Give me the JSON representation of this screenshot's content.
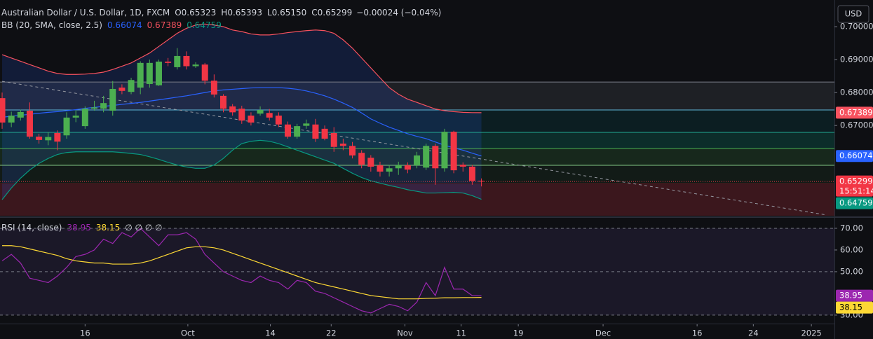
{
  "chart_data": [
    {
      "type": "candlestick",
      "title": "Australian Dollar / U.S. Dollar, 1D, FXCM",
      "ohlc_letters": [
        "O",
        "H",
        "L",
        "C"
      ],
      "change": "−0.00024 (−0.04%)",
      "currency": "USD",
      "countdown": "15:51:14",
      "indicator": "BB (20, SMA, close, 2.5)",
      "up_color": "#4caf50",
      "down_color": "#f23645",
      "candles": {
        "open": [
          0.6783,
          0.6709,
          0.6724,
          0.6745,
          0.6666,
          0.6655,
          0.6677,
          0.667,
          0.6724,
          0.6698,
          0.6751,
          0.6751,
          0.6745,
          0.6815,
          0.6802,
          0.6815,
          0.6826,
          0.6822,
          0.6894,
          0.6877,
          0.6911,
          0.688,
          0.6885,
          0.6836,
          0.679,
          0.6758,
          0.6751,
          0.673,
          0.6736,
          0.6738,
          0.673,
          0.6703,
          0.6666,
          0.6699,
          0.6703,
          0.669,
          0.6677,
          0.6645,
          0.6638,
          0.6617,
          0.6602,
          0.6579,
          0.656,
          0.657,
          0.6579,
          0.6579,
          0.6572,
          0.6638,
          0.657,
          0.6681,
          0.6581,
          0.6575,
          0.65323
        ],
        "high": [
          0.68,
          0.6742,
          0.6748,
          0.677,
          0.6675,
          0.668,
          0.6685,
          0.674,
          0.6745,
          0.6758,
          0.6775,
          0.679,
          0.6835,
          0.6825,
          0.6845,
          0.6895,
          0.69,
          0.69,
          0.6905,
          0.6935,
          0.6925,
          0.6892,
          0.689,
          0.6855,
          0.6795,
          0.6765,
          0.676,
          0.674,
          0.6758,
          0.675,
          0.674,
          0.6712,
          0.6705,
          0.6718,
          0.672,
          0.67,
          0.6695,
          0.666,
          0.665,
          0.6625,
          0.661,
          0.659,
          0.658,
          0.659,
          0.6588,
          0.662,
          0.6645,
          0.6645,
          0.669,
          0.6684,
          0.6588,
          0.658,
          0.65393
        ],
        "low": [
          0.669,
          0.6695,
          0.6715,
          0.666,
          0.6645,
          0.664,
          0.6625,
          0.666,
          0.671,
          0.669,
          0.6745,
          0.674,
          0.673,
          0.6795,
          0.6795,
          0.6795,
          0.6815,
          0.682,
          0.688,
          0.687,
          0.687,
          0.6875,
          0.6825,
          0.6785,
          0.674,
          0.673,
          0.6705,
          0.67,
          0.673,
          0.6715,
          0.6695,
          0.666,
          0.666,
          0.669,
          0.665,
          0.6655,
          0.662,
          0.6625,
          0.66,
          0.657,
          0.656,
          0.6545,
          0.6545,
          0.655,
          0.6555,
          0.657,
          0.6565,
          0.652,
          0.656,
          0.6555,
          0.656,
          0.652,
          0.6515
        ],
        "close": [
          0.6709,
          0.673,
          0.6741,
          0.6666,
          0.6656,
          0.6665,
          0.6651,
          0.6724,
          0.673,
          0.6751,
          0.6755,
          0.6768,
          0.6811,
          0.6805,
          0.6838,
          0.689,
          0.689,
          0.6894,
          0.689,
          0.6911,
          0.688,
          0.6885,
          0.6836,
          0.6794,
          0.6751,
          0.674,
          0.6715,
          0.6709,
          0.6747,
          0.6724,
          0.6703,
          0.6666,
          0.6698,
          0.6706,
          0.666,
          0.666,
          0.6635,
          0.6638,
          0.6609,
          0.6581,
          0.6575,
          0.656,
          0.657,
          0.6579,
          0.6566,
          0.6609,
          0.6638,
          0.657,
          0.6681,
          0.6564,
          0.6575,
          0.6532,
          0.65299
        ],
        "last_value_labels": [
          "0.65323",
          "0.65393",
          "0.65150",
          "0.65299"
        ]
      },
      "series": [
        {
          "color": "#f7525f",
          "values": [
            0.6915,
            0.6905,
            0.6895,
            0.6885,
            0.6875,
            0.6865,
            0.6858,
            0.6855,
            0.6855,
            0.6856,
            0.6858,
            0.6862,
            0.687,
            0.688,
            0.689,
            0.6905,
            0.692,
            0.694,
            0.696,
            0.698,
            0.6995,
            0.7005,
            0.7008,
            0.7005,
            0.7,
            0.699,
            0.6985,
            0.6978,
            0.6975,
            0.6975,
            0.6978,
            0.6982,
            0.6985,
            0.6988,
            0.699,
            0.6988,
            0.698,
            0.696,
            0.6935,
            0.6905,
            0.6875,
            0.6845,
            0.6815,
            0.6795,
            0.678,
            0.677,
            0.676,
            0.675,
            0.6745,
            0.6742,
            0.674,
            0.6739,
            0.67389
          ]
        },
        {
          "color": "#2962ff",
          "values": [
            0.6725,
            0.6728,
            0.6731,
            0.6734,
            0.6737,
            0.674,
            0.6742,
            0.6745,
            0.6748,
            0.6752,
            0.6755,
            0.6758,
            0.6761,
            0.6764,
            0.6767,
            0.677,
            0.6774,
            0.6778,
            0.6782,
            0.6786,
            0.679,
            0.6795,
            0.68,
            0.6805,
            0.6808,
            0.681,
            0.6812,
            0.6814,
            0.6815,
            0.6815,
            0.6815,
            0.6813,
            0.681,
            0.6805,
            0.6798,
            0.679,
            0.678,
            0.6768,
            0.6755,
            0.6738,
            0.672,
            0.6707,
            0.6695,
            0.6685,
            0.6675,
            0.6667,
            0.666,
            0.665,
            0.664,
            0.6632,
            0.6625,
            0.6616,
            0.66074
          ]
        },
        {
          "color": "#089981",
          "values": [
            0.6475,
            0.651,
            0.654,
            0.6565,
            0.6585,
            0.66,
            0.6612,
            0.6618,
            0.662,
            0.662,
            0.662,
            0.662,
            0.662,
            0.6618,
            0.6615,
            0.6612,
            0.6605,
            0.6597,
            0.6588,
            0.658,
            0.6574,
            0.657,
            0.657,
            0.658,
            0.66,
            0.6625,
            0.6645,
            0.6652,
            0.6655,
            0.6652,
            0.6645,
            0.6635,
            0.6625,
            0.6615,
            0.6605,
            0.6595,
            0.6585,
            0.657,
            0.6555,
            0.6542,
            0.6532,
            0.6525,
            0.6518,
            0.6512,
            0.6505,
            0.65,
            0.6495,
            0.6495,
            0.6496,
            0.6497,
            0.6495,
            0.6487,
            0.64759
          ]
        }
      ],
      "band_color": "rgba(41,98,255,0.16)",
      "levels": [
        {
          "value": 0.6832,
          "color": "#787b86",
          "fill": "rgba(120,123,134,0.16)"
        },
        {
          "value": 0.6747,
          "color": "#5fb6d6",
          "fill": "rgba(0,140,150,0.12)"
        },
        {
          "value": 0.6679,
          "color": "#22ab94",
          "fill": "rgba(8,153,129,0.22)"
        },
        {
          "value": 0.663,
          "color": "#4caf50",
          "fill": "rgba(76,175,80,0.16)"
        },
        {
          "value": 0.6579,
          "color": "#81c784",
          "fill": "rgba(76,175,80,0.08)"
        },
        {
          "value": 0.6524,
          "color": "#4a1a1e",
          "fill": "rgba(242,54,69,0.2)"
        }
      ],
      "trend_line": {
        "x": [
          0,
          89.5
        ],
        "y": [
          0.6834,
          0.6428
        ]
      },
      "xlim": [
        -0.23,
        90.3
      ],
      "xticks": [
        {
          "value": 9,
          "label": "16"
        },
        {
          "value": 20.15,
          "label": "Oct"
        },
        {
          "value": 29.1,
          "label": "14"
        },
        {
          "value": 35.7,
          "label": "22"
        },
        {
          "value": 43.7,
          "label": "Nov"
        },
        {
          "value": 49.8,
          "label": "11"
        },
        {
          "value": 56,
          "label": "19"
        },
        {
          "value": 65.2,
          "label": "Dec"
        },
        {
          "value": 75.4,
          "label": "16"
        },
        {
          "value": 81.5,
          "label": "24"
        },
        {
          "value": 87.8,
          "label": "2025"
        }
      ],
      "ylim": [
        0.6426,
        0.7081
      ],
      "yticks": [
        {
          "value": 0.7,
          "label": "0.70000"
        },
        {
          "value": 0.69,
          "label": "0.69000"
        },
        {
          "value": 0.68,
          "label": "0.68000"
        },
        {
          "value": 0.67,
          "label": "0.67000"
        }
      ]
    },
    {
      "type": "line",
      "indicator": "RSI (14, close)",
      "placeholders": "∅ ∅ ∅ ∅",
      "series": [
        {
          "color": "#9c27b0",
          "values": [
            55,
            58,
            54,
            47,
            46,
            45,
            48,
            52,
            57,
            58,
            60,
            65,
            63,
            68,
            66,
            70,
            66,
            62,
            67,
            67,
            68,
            65,
            58,
            54,
            50,
            48,
            46,
            45,
            48,
            46,
            45,
            42,
            46,
            45,
            41,
            40,
            38,
            36,
            34,
            32,
            31,
            33,
            35,
            34,
            32,
            36,
            45,
            39,
            52,
            42,
            42,
            39,
            38.95
          ]
        },
        {
          "color": "#fdd835",
          "values": [
            62,
            62,
            61.5,
            60.5,
            59.5,
            58.5,
            57.5,
            56,
            55,
            54.5,
            54,
            54,
            53.5,
            53.5,
            53.5,
            54,
            55,
            56.5,
            58,
            59.5,
            61,
            61.5,
            61.5,
            61,
            60,
            58.5,
            57,
            55.5,
            54,
            52.5,
            51,
            49.5,
            48,
            46.5,
            45,
            44,
            43,
            42,
            41,
            40,
            39,
            38.5,
            38,
            37.5,
            37.5,
            37.5,
            37.7,
            37.8,
            38,
            38,
            38.1,
            38.1,
            38.15
          ]
        }
      ],
      "band": [
        70,
        30
      ],
      "band_color": "rgba(126,87,194,0.12)",
      "dashed_levels": [
        70,
        50,
        30
      ],
      "ylim": [
        26.1,
        74.5
      ],
      "yticks": [
        {
          "value": 70,
          "label": "70.00"
        },
        {
          "value": 60,
          "label": "60.00"
        },
        {
          "value": 50,
          "label": "50.00"
        },
        {
          "value": 30,
          "label": "30.00"
        }
      ]
    }
  ]
}
